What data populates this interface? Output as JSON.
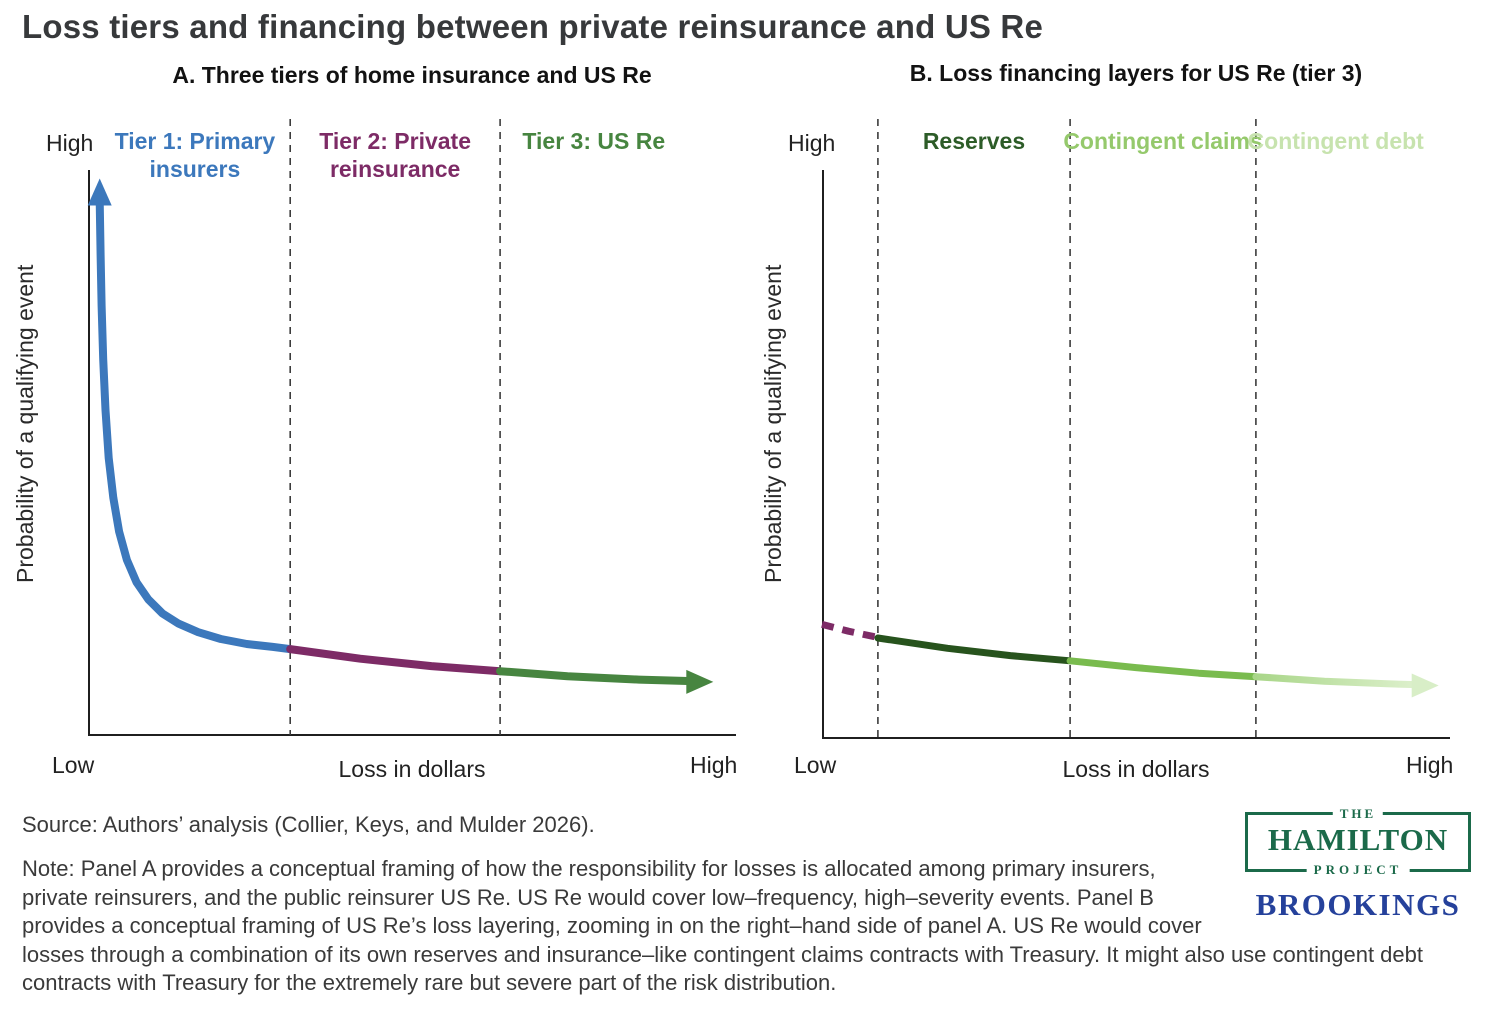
{
  "page": {
    "title": "Loss tiers and financing between private reinsurance and US Re",
    "source": "Source: Authors’ analysis (Collier, Keys, and Mulder 2026).",
    "note": "Note: Panel A provides a conceptual framing of how the responsibility for losses is allocated among primary insurers, private reinsurers, and the public reinsurer US Re. US Re would cover low–frequency, high–severity events. Panel B provides a conceptual framing of US Re’s loss layering, zooming in on the right–hand side of panel A. US Re would cover losses through a combination of its own reserves and insurance–like contingent claims contracts with Treasury. It might also use contingent debt contracts with Treasury for the extremely rare but severe part of the risk distribution."
  },
  "logos": {
    "hamilton_the": "THE",
    "hamilton_name": "HAMILTON",
    "hamilton_project": "PROJECT",
    "hamilton_color": "#1b6a4a",
    "brookings": "BROOKINGS",
    "brookings_color": "#25419b"
  },
  "chart_data": [
    {
      "panel": "A",
      "type": "line",
      "title": "A. Three tiers of home insurance and US Re",
      "xlabel": "Loss in dollars",
      "ylabel": "Probability of a qualifying event",
      "x_low": "Low",
      "x_high": "High",
      "y_high": "High",
      "axes_note": "conceptual axes, no numeric scale; x and y run Low to High",
      "grid": false,
      "dividers": [
        0.312,
        0.636
      ],
      "segments": [
        {
          "label": "Tier 1: Primary insurers",
          "color": "#3c78bc",
          "style": "solid",
          "arrow": {
            "dir": "up",
            "tip": [
              0.018,
              0.985
            ]
          },
          "points": [
            [
              0.018,
              0.945
            ],
            [
              0.0195,
              0.85
            ],
            [
              0.021,
              0.76
            ],
            [
              0.0235,
              0.665
            ],
            [
              0.027,
              0.575
            ],
            [
              0.032,
              0.49
            ],
            [
              0.039,
              0.42
            ],
            [
              0.048,
              0.36
            ],
            [
              0.06,
              0.31
            ],
            [
              0.075,
              0.27
            ],
            [
              0.093,
              0.24
            ],
            [
              0.115,
              0.215
            ],
            [
              0.14,
              0.197
            ],
            [
              0.17,
              0.182
            ],
            [
              0.205,
              0.17
            ],
            [
              0.245,
              0.161
            ],
            [
              0.285,
              0.156
            ],
            [
              0.312,
              0.152
            ]
          ]
        },
        {
          "label": "Tier 2: Private reinsurance",
          "color": "#7d2b66",
          "style": "solid",
          "points": [
            [
              0.312,
              0.152
            ],
            [
              0.42,
              0.135
            ],
            [
              0.53,
              0.122
            ],
            [
              0.636,
              0.113
            ]
          ]
        },
        {
          "label": "Tier 3: US Re",
          "color": "#478540",
          "style": "solid",
          "arrow": {
            "dir": "right",
            "tip": [
              0.965,
              0.094
            ]
          },
          "points": [
            [
              0.636,
              0.113
            ],
            [
              0.74,
              0.104
            ],
            [
              0.85,
              0.098
            ],
            [
              0.925,
              0.0955
            ]
          ]
        }
      ]
    },
    {
      "panel": "B",
      "type": "line",
      "title": "B. Loss financing layers for US Re (tier 3)",
      "xlabel": "Loss in dollars",
      "ylabel": "Probability of a qualifying event",
      "x_low": "Low",
      "x_high": "High",
      "y_high": "High",
      "axes_note": "conceptual axes, zoomed into the tier 3 (low probability, high loss) tail",
      "grid": false,
      "dividers": [
        0.089,
        0.395,
        0.691
      ],
      "segments": [
        {
          "label": "",
          "color": "#7d2b66",
          "style": "dashed",
          "points": [
            [
              0.0,
              0.2
            ],
            [
              0.042,
              0.188
            ],
            [
              0.085,
              0.178
            ]
          ]
        },
        {
          "label": "Reserves",
          "color": "#27531d",
          "label_color": "#2d5c28",
          "style": "solid",
          "points": [
            [
              0.089,
              0.176
            ],
            [
              0.2,
              0.158
            ],
            [
              0.3,
              0.145
            ],
            [
              0.395,
              0.136
            ]
          ]
        },
        {
          "label": "Contingent claims",
          "color": "#79bb4e",
          "label_color": "#95c96c",
          "style": "solid",
          "points": [
            [
              0.395,
              0.136
            ],
            [
              0.5,
              0.124
            ],
            [
              0.6,
              0.114
            ],
            [
              0.691,
              0.108
            ]
          ]
        },
        {
          "label": "Contingent debt",
          "color": "#c7e5b2",
          "label_color": "#c7e3ae",
          "style": "solid",
          "gradient": [
            "#a9d689",
            "#ddf0cc"
          ],
          "arrow": {
            "dir": "right",
            "tip": [
              0.982,
              0.0925
            ]
          },
          "arrow_color": "#d8eec7",
          "points": [
            [
              0.691,
              0.108
            ],
            [
              0.8,
              0.1
            ],
            [
              0.9,
              0.0955
            ],
            [
              0.945,
              0.094
            ]
          ]
        }
      ]
    }
  ]
}
